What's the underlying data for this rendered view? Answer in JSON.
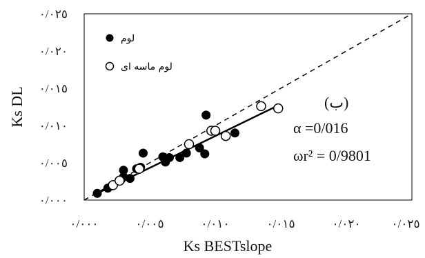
{
  "chart_data": {
    "type": "scatter",
    "xlabel": "Ks BESTslope",
    "ylabel": "Ks DL",
    "xlim": [
      0,
      0.025
    ],
    "ylim": [
      0,
      0.025
    ],
    "x_ticks": [
      0,
      0.005,
      0.01,
      0.015,
      0.02,
      0.025
    ],
    "y_ticks": [
      0,
      0.005,
      0.01,
      0.015,
      0.02,
      0.025
    ],
    "x_tick_labels": [
      "٠/٠٠٠",
      "٠/٠٠٥",
      "٠/٠١٠",
      "٠/٠١٥",
      "٠/٠٢٠",
      "٠/٠٢٥"
    ],
    "y_tick_labels": [
      "٠/٠٠٠",
      "٠/٠٠٥",
      "٠/٠١٠",
      "٠/٠١٥",
      "٠/٠٢٠",
      "٠/٠٢٥"
    ],
    "grid": false,
    "legend_position": "top-left",
    "series": [
      {
        "name": "لوم",
        "marker": "filled-circle",
        "color": "#000000",
        "points": [
          [
            0.001,
            0.0009
          ],
          [
            0.0018,
            0.0016
          ],
          [
            0.0021,
            0.0019
          ],
          [
            0.0028,
            0.0027
          ],
          [
            0.003,
            0.0031
          ],
          [
            0.003,
            0.004
          ],
          [
            0.0035,
            0.0029
          ],
          [
            0.004,
            0.0042
          ],
          [
            0.0043,
            0.0044
          ],
          [
            0.0045,
            0.0063
          ],
          [
            0.006,
            0.0058
          ],
          [
            0.0062,
            0.0051
          ],
          [
            0.0065,
            0.0057
          ],
          [
            0.0073,
            0.0057
          ],
          [
            0.0078,
            0.0063
          ],
          [
            0.0088,
            0.007
          ],
          [
            0.0092,
            0.0062
          ],
          [
            0.0093,
            0.0114
          ],
          [
            0.0115,
            0.009
          ]
        ]
      },
      {
        "name": "لوم ماسه ای",
        "marker": "open-circle",
        "color": "#000000",
        "points": [
          [
            0.0022,
            0.002
          ],
          [
            0.0027,
            0.0026
          ],
          [
            0.0042,
            0.0042
          ],
          [
            0.008,
            0.0075
          ],
          [
            0.0097,
            0.0093
          ],
          [
            0.01,
            0.0093
          ],
          [
            0.0108,
            0.0086
          ],
          [
            0.0135,
            0.0126
          ],
          [
            0.0148,
            0.0123
          ]
        ]
      }
    ],
    "reference_line": {
      "style": "dashed",
      "from": [
        0,
        0
      ],
      "to": [
        0.025,
        0.025
      ]
    },
    "fit_line": {
      "style": "solid",
      "from": [
        0.001,
        0.0009
      ],
      "to": [
        0.0148,
        0.0127
      ]
    },
    "annotations": {
      "label": "(ب)",
      "alpha": "α =0/016",
      "r2": "ωr² = 0/9801"
    }
  }
}
